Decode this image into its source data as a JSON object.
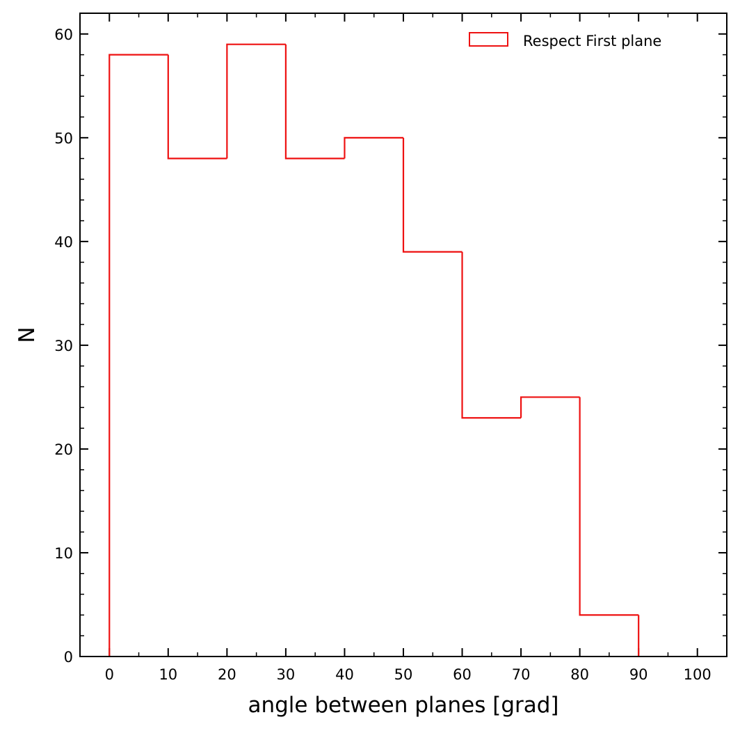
{
  "chart_data": {
    "type": "bar",
    "histogram": true,
    "bin_edges": [
      0,
      10,
      20,
      30,
      40,
      50,
      60,
      70,
      80,
      90
    ],
    "series": [
      {
        "name": "Respect First plane",
        "values": [
          58,
          48,
          59,
          48,
          50,
          39,
          23,
          25,
          4
        ],
        "color": "#ee1111"
      }
    ],
    "xlabel": "angle between planes [grad]",
    "ylabel": "N",
    "xlim": [
      -5,
      105
    ],
    "ylim": [
      0,
      62
    ],
    "x_ticks": [
      "0",
      "10",
      "20",
      "30",
      "40",
      "50",
      "60",
      "70",
      "80",
      "90",
      "100"
    ],
    "y_ticks": [
      "0",
      "10",
      "20",
      "30",
      "40",
      "50",
      "60"
    ],
    "x_minor_step": 5,
    "y_minor_step": 2,
    "grid": false,
    "ticks_direction": "in",
    "ticks_on_all_sides": true,
    "legend_position": "top-right",
    "axis_color": "#000000"
  }
}
